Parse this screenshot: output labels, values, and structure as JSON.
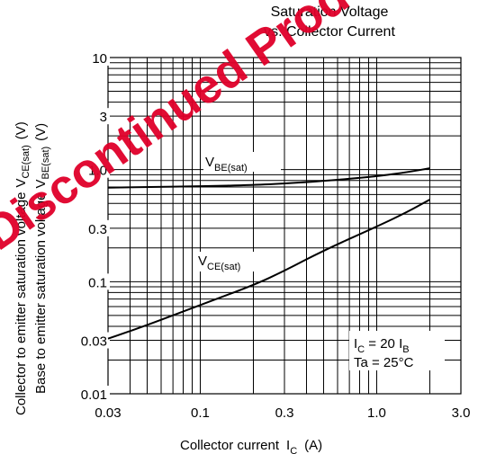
{
  "chart_data": {
    "type": "line",
    "title_lines": [
      "Saturation Voltage",
      "vs. Collector Current"
    ],
    "xlabel": "Collector current",
    "xlabel_symbol": "I",
    "xlabel_sub": "C",
    "xlabel_unit": "(A)",
    "ylabel_1": "Collector to emitter saturation voltage",
    "ylabel_1_symbol": "V",
    "ylabel_1_sub": "CE(sat)",
    "ylabel_1_unit": "(V)",
    "ylabel_2": "Base to emitter saturation voltage",
    "ylabel_2_symbol": "V",
    "ylabel_2_sub": "BE(sat)",
    "ylabel_2_unit": "(V)",
    "x_scale": "log",
    "y_scale": "log",
    "xlim": [
      0.03,
      3.0
    ],
    "ylim": [
      0.01,
      10
    ],
    "x_ticks": [
      "0.03",
      "0.1",
      "0.3",
      "1.0",
      "3.0"
    ],
    "x_tick_values": [
      0.03,
      0.1,
      0.3,
      1.0,
      3.0
    ],
    "y_ticks": [
      "0.01",
      "0.03",
      "0.1",
      "0.3",
      "1.0",
      "3",
      "10"
    ],
    "y_tick_values": [
      0.01,
      0.03,
      0.1,
      0.3,
      1.0,
      3,
      10
    ],
    "grid": true,
    "series": [
      {
        "name": "V",
        "name_sub": "BE(sat)",
        "x": [
          0.03,
          0.05,
          0.1,
          0.2,
          0.3,
          0.5,
          1.0,
          1.5,
          2.0
        ],
        "y": [
          0.69,
          0.7,
          0.71,
          0.73,
          0.75,
          0.79,
          0.87,
          0.95,
          1.03
        ]
      },
      {
        "name": "V",
        "name_sub": "CE(sat)",
        "x": [
          0.03,
          0.05,
          0.1,
          0.2,
          0.3,
          0.5,
          1.0,
          1.5,
          2.0
        ],
        "y": [
          0.031,
          0.041,
          0.062,
          0.093,
          0.125,
          0.19,
          0.31,
          0.42,
          0.54
        ]
      }
    ],
    "annotation": {
      "line1_symbol": "I",
      "line1_sub": "C",
      "line1_mid": " = 20 I",
      "line1_sub2": "B",
      "line2": "Ta = 25°C"
    }
  },
  "watermark": "Discontinued Product"
}
